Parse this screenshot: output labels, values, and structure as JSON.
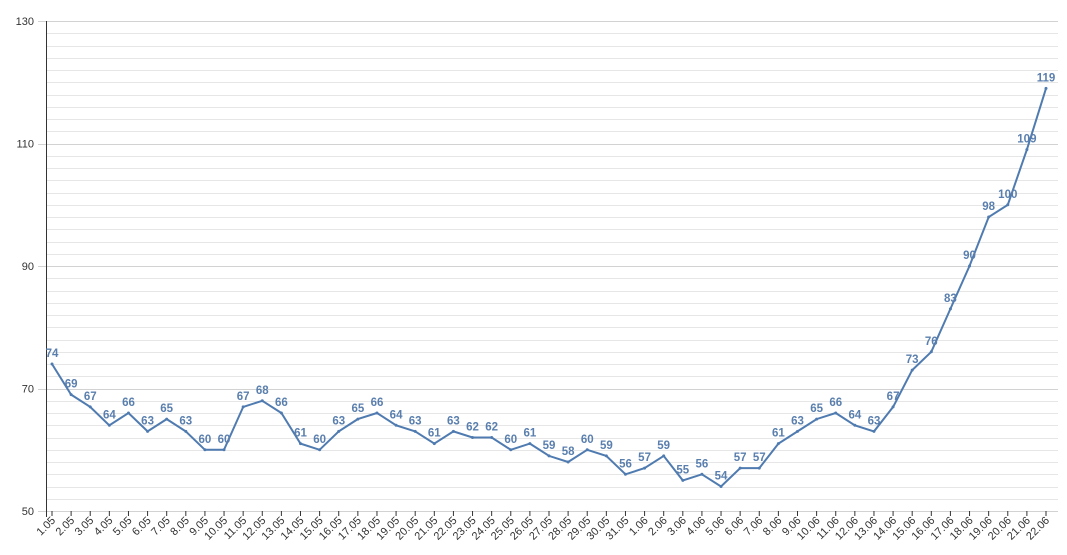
{
  "chart_data": {
    "type": "line",
    "title": "",
    "xlabel": "",
    "ylabel": "",
    "ylim": [
      50,
      130
    ],
    "y_ticks": [
      50,
      70,
      90,
      110,
      130
    ],
    "y_tick_labels": [
      "50",
      "70",
      "90",
      "110",
      "130"
    ],
    "grid": true,
    "legend": "none",
    "colors": {
      "line": "#4f7bb0",
      "labels": "#5a7fae",
      "grid": "#e6e6e6"
    },
    "categories": [
      "1.05",
      "2.05",
      "3.05",
      "4.05",
      "5.05",
      "6.05",
      "7.05",
      "8.05",
      "9.05",
      "10.05",
      "11.05",
      "12.05",
      "13.05",
      "14.05",
      "15.05",
      "16.05",
      "17.05",
      "18.05",
      "19.05",
      "20.05",
      "21.05",
      "22.05",
      "23.05",
      "24.05",
      "25.05",
      "26.05",
      "27.05",
      "28.05",
      "29.05",
      "30.05",
      "31.05",
      "1.06",
      "2.06",
      "3.06",
      "4.06",
      "5.06",
      "6.06",
      "7.06",
      "8.06",
      "9.06",
      "10.06",
      "11.06",
      "12.06",
      "13.06",
      "14.06",
      "15.06",
      "16.06",
      "17.06",
      "18.06",
      "19.06",
      "20.06",
      "21.06",
      "22.06"
    ],
    "series": [
      {
        "values": [
          74,
          69,
          67,
          64,
          66,
          63,
          65,
          63,
          60,
          60,
          67,
          68,
          66,
          61,
          60,
          63,
          65,
          66,
          64,
          63,
          61,
          63,
          62,
          62,
          60,
          61,
          59,
          58,
          60,
          59,
          56,
          57,
          59,
          55,
          56,
          54,
          57,
          57,
          61,
          63,
          65,
          66,
          64,
          63,
          67,
          73,
          76,
          83,
          90,
          98,
          100,
          109,
          119
        ],
        "data_labels": [
          "74",
          "69",
          "67",
          "64",
          "66",
          "63",
          "65",
          "63",
          "60",
          "60",
          "67",
          "68",
          "66",
          "61",
          "60",
          "63",
          "65",
          "66",
          "64",
          "63",
          "61",
          "63",
          "62",
          "62",
          "60",
          "61",
          "59",
          "58",
          "60",
          "59",
          "56",
          "57",
          "59",
          "55",
          "56",
          "54",
          "57",
          "57",
          "61",
          "63",
          "65",
          "66",
          "64",
          "63",
          "67",
          "73",
          "76",
          "83",
          "90",
          "98",
          "100",
          "109",
          "119"
        ]
      }
    ]
  }
}
